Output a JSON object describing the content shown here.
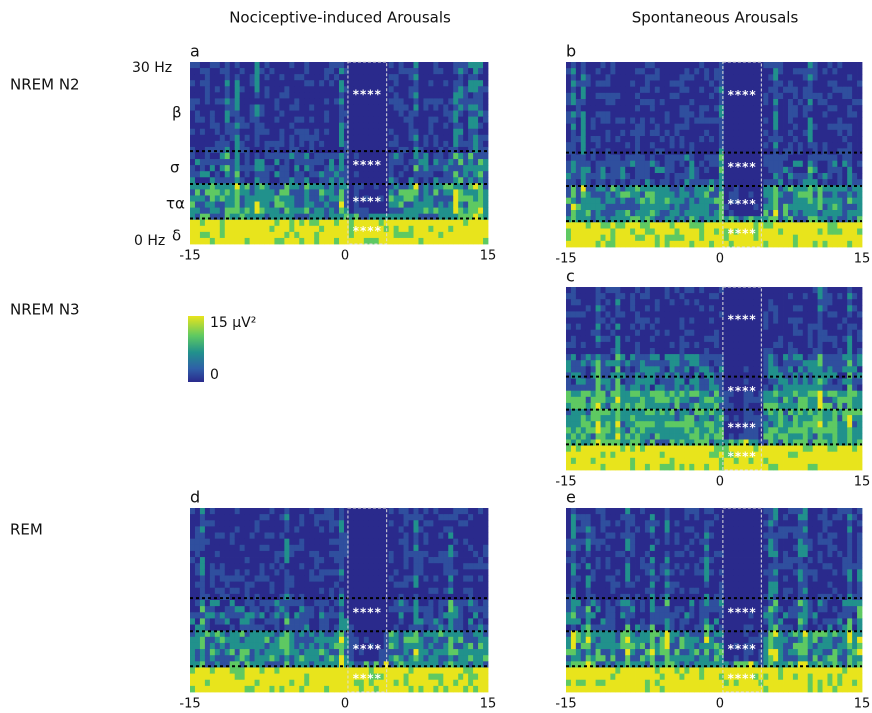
{
  "columns": [
    {
      "title": "Nociceptive-induced Arousals"
    },
    {
      "title": "Spontaneous Arousals"
    }
  ],
  "rows": [
    {
      "label": "NREM N2"
    },
    {
      "label": "NREM N3"
    },
    {
      "label": "REM"
    }
  ],
  "y_axis": {
    "top": "30 Hz",
    "bottom": "0 Hz",
    "bands": [
      "β",
      "σ",
      "τα",
      "δ"
    ]
  },
  "colorbar": {
    "max": "15 µV²",
    "min": "0"
  },
  "panels": [
    {
      "letter": "a",
      "x_labels": [
        "-15",
        "0",
        "15"
      ],
      "stars": [
        "****",
        "****",
        "****",
        "****"
      ]
    },
    {
      "letter": "b",
      "x_labels": [
        "-15",
        "0",
        "15"
      ],
      "stars": [
        "****",
        "****",
        "****",
        "****"
      ]
    },
    {
      "letter": "c",
      "x_labels": [
        "-15",
        "0",
        "15"
      ],
      "stars": [
        "****",
        "****",
        "****",
        "****"
      ]
    },
    {
      "letter": "d",
      "x_labels": [
        "-15",
        "0",
        "15"
      ],
      "stars": [
        "****",
        "****",
        "****"
      ]
    },
    {
      "letter": "e",
      "x_labels": [
        "-15",
        "0",
        "15"
      ],
      "stars": [
        "****",
        "****",
        "****"
      ]
    }
  ]
}
